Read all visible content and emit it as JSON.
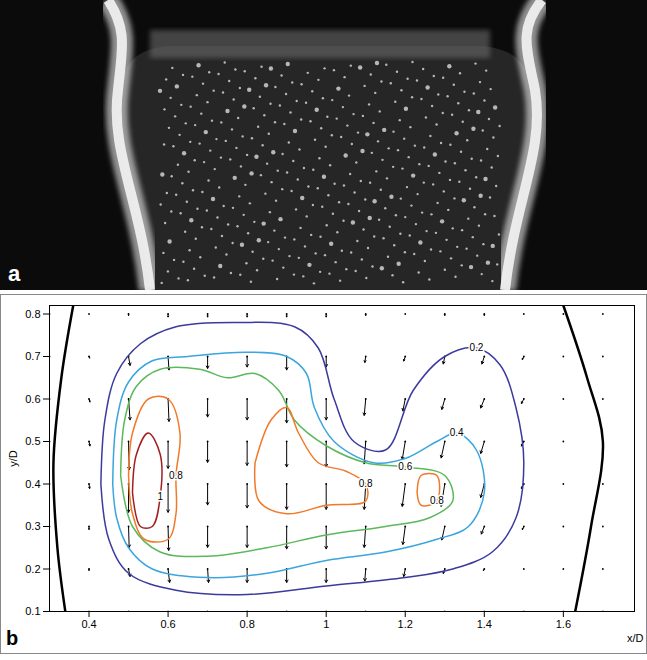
{
  "photo": {
    "panel": "a"
  },
  "chart_data": {
    "panel": "b",
    "type": "contour",
    "xlabel": "x/D",
    "ylabel": "y/D",
    "xlim": [
      0.3,
      1.78
    ],
    "ylim": [
      0.1,
      0.82
    ],
    "xticks": [
      0.4,
      0.6,
      0.8,
      1,
      1.2,
      1.4,
      1.6
    ],
    "yticks": [
      0.1,
      0.2,
      0.3,
      0.4,
      0.5,
      0.6,
      0.7,
      0.8
    ],
    "contours": [
      {
        "level": 0.2,
        "color": "#3b3b9e",
        "rings": [
          [
            [
              0.43,
              0.4
            ],
            [
              0.44,
              0.55
            ],
            [
              0.47,
              0.66
            ],
            [
              0.53,
              0.73
            ],
            [
              0.62,
              0.77
            ],
            [
              0.78,
              0.78
            ],
            [
              0.92,
              0.77
            ],
            [
              0.98,
              0.72
            ],
            [
              1.02,
              0.6
            ],
            [
              1.07,
              0.5
            ],
            [
              1.15,
              0.48
            ],
            [
              1.22,
              0.62
            ],
            [
              1.3,
              0.7
            ],
            [
              1.38,
              0.72
            ],
            [
              1.44,
              0.68
            ],
            [
              1.48,
              0.58
            ],
            [
              1.5,
              0.45
            ],
            [
              1.48,
              0.32
            ],
            [
              1.42,
              0.24
            ],
            [
              1.32,
              0.2
            ],
            [
              1.2,
              0.18
            ],
            [
              1.0,
              0.16
            ],
            [
              0.8,
              0.14
            ],
            [
              0.62,
              0.15
            ],
            [
              0.5,
              0.19
            ],
            [
              0.45,
              0.27
            ],
            [
              0.43,
              0.4
            ]
          ]
        ]
      },
      {
        "level": 0.4,
        "color": "#3aa6dd",
        "rings": [
          [
            [
              0.46,
              0.4
            ],
            [
              0.47,
              0.55
            ],
            [
              0.5,
              0.64
            ],
            [
              0.56,
              0.69
            ],
            [
              0.65,
              0.7
            ],
            [
              0.8,
              0.71
            ],
            [
              0.9,
              0.7
            ],
            [
              0.95,
              0.66
            ],
            [
              0.97,
              0.58
            ],
            [
              1.02,
              0.5
            ],
            [
              1.12,
              0.45
            ],
            [
              1.2,
              0.46
            ],
            [
              1.28,
              0.5
            ],
            [
              1.33,
              0.52
            ],
            [
              1.38,
              0.48
            ],
            [
              1.4,
              0.38
            ],
            [
              1.36,
              0.3
            ],
            [
              1.28,
              0.27
            ],
            [
              1.15,
              0.24
            ],
            [
              1.0,
              0.22
            ],
            [
              0.85,
              0.19
            ],
            [
              0.7,
              0.18
            ],
            [
              0.56,
              0.2
            ],
            [
              0.5,
              0.25
            ],
            [
              0.47,
              0.32
            ],
            [
              0.46,
              0.4
            ]
          ]
        ]
      },
      {
        "level": 0.6,
        "color": "#5cb85c",
        "rings": [
          [
            [
              0.48,
              0.42
            ],
            [
              0.49,
              0.55
            ],
            [
              0.52,
              0.63
            ],
            [
              0.58,
              0.67
            ],
            [
              0.68,
              0.67
            ],
            [
              0.75,
              0.65
            ],
            [
              0.82,
              0.66
            ],
            [
              0.88,
              0.62
            ],
            [
              0.92,
              0.55
            ],
            [
              1.0,
              0.49
            ],
            [
              1.1,
              0.45
            ],
            [
              1.2,
              0.44
            ],
            [
              1.3,
              0.42
            ],
            [
              1.32,
              0.36
            ],
            [
              1.26,
              0.32
            ],
            [
              1.15,
              0.3
            ],
            [
              1.0,
              0.28
            ],
            [
              0.85,
              0.25
            ],
            [
              0.7,
              0.23
            ],
            [
              0.58,
              0.24
            ],
            [
              0.51,
              0.3
            ],
            [
              0.48,
              0.42
            ]
          ]
        ]
      },
      {
        "level": 0.8,
        "color": "#f07a2a",
        "rings": [
          [
            [
              0.5,
              0.42
            ],
            [
              0.51,
              0.52
            ],
            [
              0.55,
              0.6
            ],
            [
              0.6,
              0.6
            ],
            [
              0.63,
              0.52
            ],
            [
              0.62,
              0.42
            ],
            [
              0.62,
              0.33
            ],
            [
              0.6,
              0.27
            ],
            [
              0.54,
              0.27
            ],
            [
              0.51,
              0.33
            ],
            [
              0.5,
              0.42
            ]
          ],
          [
            [
              0.82,
              0.45
            ],
            [
              0.86,
              0.55
            ],
            [
              0.9,
              0.58
            ],
            [
              0.93,
              0.52
            ],
            [
              0.98,
              0.45
            ],
            [
              1.05,
              0.43
            ],
            [
              1.1,
              0.4
            ],
            [
              1.1,
              0.36
            ],
            [
              1.0,
              0.35
            ],
            [
              0.9,
              0.33
            ],
            [
              0.83,
              0.36
            ],
            [
              0.82,
              0.45
            ]
          ],
          [
            [
              1.23,
              0.38
            ],
            [
              1.24,
              0.42
            ],
            [
              1.28,
              0.42
            ],
            [
              1.28,
              0.36
            ],
            [
              1.24,
              0.35
            ],
            [
              1.23,
              0.38
            ]
          ]
        ]
      },
      {
        "level": 1,
        "color": "#a31f1f",
        "rings": [
          [
            [
              0.51,
              0.38
            ],
            [
              0.52,
              0.47
            ],
            [
              0.55,
              0.52
            ],
            [
              0.58,
              0.47
            ],
            [
              0.58,
              0.37
            ],
            [
              0.56,
              0.3
            ],
            [
              0.53,
              0.3
            ],
            [
              0.51,
              0.38
            ]
          ]
        ]
      }
    ],
    "vectors": {
      "x": [
        0.3,
        0.4,
        0.5,
        0.6,
        0.7,
        0.8,
        0.9,
        1.0,
        1.1,
        1.2,
        1.3,
        1.4,
        1.5,
        1.6,
        1.7
      ],
      "y": [
        0.8,
        0.7,
        0.6,
        0.5,
        0.4,
        0.3,
        0.2,
        0.1
      ],
      "u": [
        [
          0,
          0,
          0,
          0,
          0,
          0,
          0,
          0,
          0,
          0,
          0,
          0,
          0,
          0,
          0
        ],
        [
          0,
          0.02,
          0.05,
          0.03,
          0,
          0,
          0,
          0,
          -0.03,
          -0.05,
          -0.05,
          -0.08,
          -0.05,
          0,
          0
        ],
        [
          0,
          0.03,
          0.05,
          0.03,
          0,
          0,
          0,
          0,
          -0.05,
          -0.08,
          -0.1,
          -0.12,
          -0.08,
          0,
          0
        ],
        [
          0,
          0.03,
          0.02,
          0,
          0,
          0,
          0,
          0,
          -0.05,
          -0.1,
          -0.12,
          -0.12,
          -0.08,
          0,
          0
        ],
        [
          0,
          0.02,
          0,
          0,
          0,
          0,
          0,
          0,
          -0.05,
          -0.1,
          -0.12,
          -0.12,
          -0.08,
          0,
          0
        ],
        [
          0,
          0,
          0.02,
          0.02,
          0,
          0,
          0,
          0,
          -0.05,
          -0.08,
          -0.1,
          -0.1,
          -0.05,
          0,
          0
        ],
        [
          0,
          0,
          0.05,
          0.05,
          0.03,
          0,
          0,
          0,
          -0.03,
          -0.05,
          -0.05,
          -0.03,
          0,
          0,
          0
        ],
        [
          0,
          0,
          0,
          0,
          0,
          0,
          0,
          0,
          0,
          0,
          0,
          0,
          0,
          0,
          0
        ]
      ],
      "v": [
        [
          0,
          0,
          -0.05,
          -0.1,
          -0.1,
          -0.1,
          -0.1,
          -0.1,
          -0.05,
          0,
          -0.05,
          -0.05,
          0,
          0,
          0
        ],
        [
          0,
          -0.05,
          -0.3,
          -0.45,
          -0.4,
          -0.35,
          -0.45,
          -0.35,
          -0.2,
          -0.15,
          -0.25,
          -0.25,
          -0.1,
          0,
          0
        ],
        [
          0,
          -0.1,
          -0.7,
          -0.75,
          -0.6,
          -0.7,
          -0.8,
          -0.7,
          -0.55,
          -0.4,
          -0.35,
          -0.3,
          -0.15,
          0,
          0
        ],
        [
          0,
          -0.15,
          -0.95,
          -0.9,
          -0.7,
          -0.8,
          -0.85,
          -0.85,
          -0.75,
          -0.6,
          -0.55,
          -0.4,
          -0.15,
          0,
          0
        ],
        [
          0,
          -0.15,
          -0.95,
          -0.95,
          -0.7,
          -0.8,
          -0.85,
          -0.85,
          -0.85,
          -0.75,
          -0.75,
          -0.45,
          -0.15,
          0,
          0
        ],
        [
          0,
          -0.1,
          -0.7,
          -0.8,
          -0.7,
          -0.7,
          -0.75,
          -0.75,
          -0.7,
          -0.6,
          -0.45,
          -0.25,
          -0.1,
          0,
          0
        ],
        [
          0,
          -0.05,
          -0.25,
          -0.45,
          -0.45,
          -0.45,
          -0.45,
          -0.45,
          -0.4,
          -0.25,
          -0.15,
          -0.05,
          0,
          0,
          0
        ],
        [
          0,
          0,
          -0.05,
          -0.1,
          -0.1,
          -0.15,
          -0.15,
          -0.1,
          -0.1,
          -0.05,
          0,
          0,
          0,
          0,
          0
        ]
      ]
    },
    "boundaries": {
      "color": "#000000",
      "lines": [
        [
          [
            0.34,
            0.1
          ],
          [
            0.32,
            0.25
          ],
          [
            0.31,
            0.45
          ],
          [
            0.33,
            0.65
          ],
          [
            0.36,
            0.82
          ]
        ],
        [
          [
            1.63,
            0.1
          ],
          [
            1.67,
            0.3
          ],
          [
            1.7,
            0.5
          ],
          [
            1.66,
            0.65
          ],
          [
            1.6,
            0.82
          ]
        ]
      ]
    }
  }
}
